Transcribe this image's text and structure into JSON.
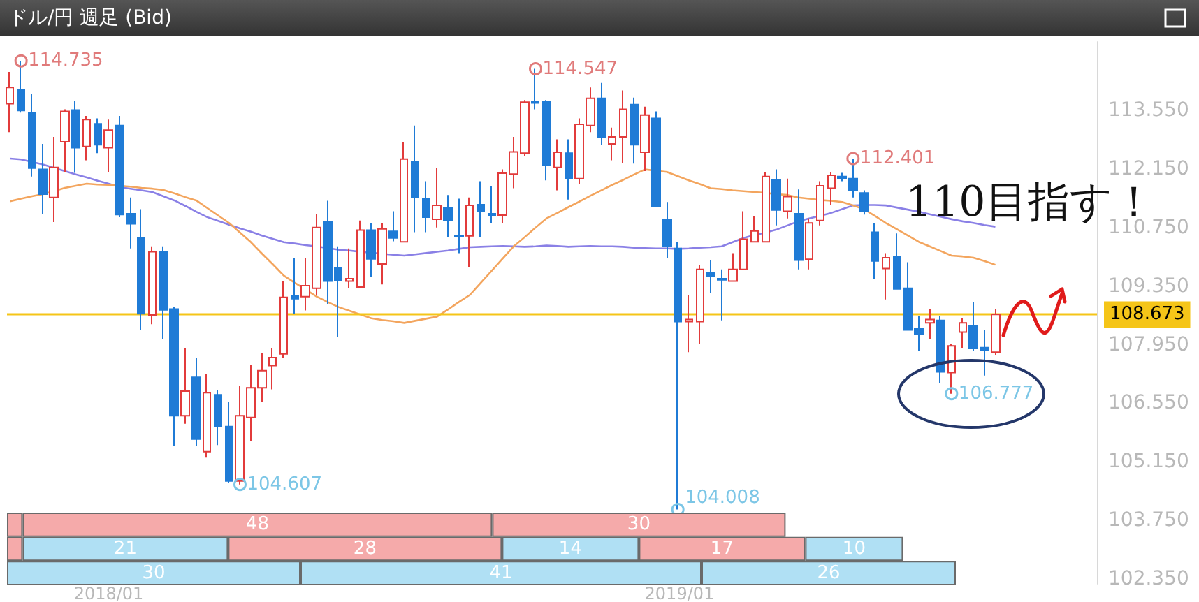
{
  "chart_data": [
    {
      "type": "candlestick",
      "title": "ドル/円 週足 (Bid)",
      "x": [
        "2017-10-30",
        "2017-11-06",
        "2017-11-13",
        "2017-11-20",
        "2017-11-27",
        "2017-12-04",
        "2017-12-11",
        "2017-12-18",
        "2017-12-25",
        "2018-01-01",
        "2018-01-08",
        "2018-01-15",
        "2018-01-22",
        "2018-01-29",
        "2018-02-05",
        "2018-02-12",
        "2018-02-19",
        "2018-02-26",
        "2018-03-05",
        "2018-03-12",
        "2018-03-19",
        "2018-03-26",
        "2018-04-02",
        "2018-04-09",
        "2018-04-16",
        "2018-04-23",
        "2018-04-30",
        "2018-05-07",
        "2018-05-14",
        "2018-05-21",
        "2018-05-28",
        "2018-06-04",
        "2018-06-11",
        "2018-06-18",
        "2018-06-25",
        "2018-07-02",
        "2018-07-09",
        "2018-07-16",
        "2018-07-23",
        "2018-07-30",
        "2018-08-06",
        "2018-08-13",
        "2018-08-20",
        "2018-08-27",
        "2018-09-03",
        "2018-09-10",
        "2018-09-17",
        "2018-09-24",
        "2018-10-01",
        "2018-10-08",
        "2018-10-15",
        "2018-10-22",
        "2018-10-29",
        "2018-11-05",
        "2018-11-12",
        "2018-11-19",
        "2018-11-26",
        "2018-12-03",
        "2018-12-10",
        "2018-12-17",
        "2018-12-24",
        "2018-12-31",
        "2019-01-07",
        "2019-01-14",
        "2019-01-21",
        "2019-01-28",
        "2019-02-04",
        "2019-02-11",
        "2019-02-18",
        "2019-02-25",
        "2019-03-04",
        "2019-03-11",
        "2019-03-18",
        "2019-03-25",
        "2019-04-01",
        "2019-04-08",
        "2019-04-15",
        "2019-04-22",
        "2019-04-29",
        "2019-05-06",
        "2019-05-13",
        "2019-05-20",
        "2019-05-27",
        "2019-06-03",
        "2019-06-10",
        "2019-06-17",
        "2019-06-24",
        "2019-07-01",
        "2019-07-08",
        "2019-07-15",
        "2019-07-22"
      ],
      "ohlc": [
        [
          113.71,
          114.47,
          113.03,
          114.1
        ],
        [
          114.05,
          114.735,
          113.5,
          113.55
        ],
        [
          113.5,
          113.95,
          111.97,
          112.17
        ],
        [
          112.14,
          112.75,
          111.08,
          111.55
        ],
        [
          111.47,
          112.92,
          110.88,
          112.19
        ],
        [
          112.8,
          113.58,
          112.08,
          113.53
        ],
        [
          113.56,
          113.77,
          112.06,
          112.66
        ],
        [
          112.69,
          113.42,
          112.36,
          113.33
        ],
        [
          113.23,
          113.36,
          112.53,
          112.73
        ],
        [
          112.66,
          113.33,
          112.08,
          113.08
        ],
        [
          113.19,
          113.42,
          111.0,
          111.06
        ],
        [
          111.08,
          111.47,
          110.25,
          110.84
        ],
        [
          110.5,
          111.19,
          108.3,
          108.69
        ],
        [
          108.66,
          110.3,
          108.44,
          110.17
        ],
        [
          110.17,
          110.3,
          108.08,
          108.78
        ],
        [
          108.8,
          108.86,
          105.53,
          106.25
        ],
        [
          106.25,
          107.86,
          106.06,
          106.84
        ],
        [
          107.17,
          107.64,
          105.53,
          105.69
        ],
        [
          105.39,
          107.25,
          105.25,
          106.8
        ],
        [
          106.75,
          106.86,
          105.55,
          105.99
        ],
        [
          105.99,
          106.58,
          104.64,
          104.69
        ],
        [
          104.69,
          106.97,
          104.607,
          106.25
        ],
        [
          106.21,
          107.47,
          105.64,
          106.92
        ],
        [
          106.92,
          107.75,
          106.58,
          107.33
        ],
        [
          107.45,
          107.86,
          106.88,
          107.64
        ],
        [
          107.73,
          109.47,
          107.64,
          109.08
        ],
        [
          109.11,
          110.03,
          108.69,
          109.05
        ],
        [
          109.1,
          110.03,
          108.77,
          109.36
        ],
        [
          109.3,
          111.08,
          109.14,
          110.75
        ],
        [
          110.88,
          111.39,
          108.92,
          109.47
        ],
        [
          109.78,
          110.3,
          108.14,
          109.49
        ],
        [
          109.47,
          110.25,
          109.3,
          109.53
        ],
        [
          109.33,
          110.92,
          109.3,
          110.69
        ],
        [
          110.69,
          110.86,
          109.58,
          110.0
        ],
        [
          109.88,
          110.86,
          109.39,
          110.72
        ],
        [
          110.66,
          111.14,
          110.42,
          110.5
        ],
        [
          110.41,
          112.8,
          110.41,
          112.39
        ],
        [
          112.33,
          113.19,
          110.64,
          111.47
        ],
        [
          111.44,
          111.86,
          110.64,
          111.0
        ],
        [
          110.95,
          112.17,
          110.75,
          111.28
        ],
        [
          111.23,
          111.53,
          110.53,
          110.92
        ],
        [
          110.56,
          111.44,
          110.14,
          110.53
        ],
        [
          110.55,
          111.47,
          109.8,
          111.28
        ],
        [
          111.3,
          111.86,
          110.53,
          111.14
        ],
        [
          111.08,
          111.75,
          110.86,
          111.05
        ],
        [
          111.05,
          112.14,
          110.86,
          112.05
        ],
        [
          112.03,
          112.92,
          111.69,
          112.56
        ],
        [
          112.53,
          113.8,
          112.45,
          113.75
        ],
        [
          113.77,
          114.547,
          113.58,
          113.73
        ],
        [
          113.77,
          113.8,
          111.88,
          112.25
        ],
        [
          112.19,
          112.86,
          111.64,
          112.55
        ],
        [
          112.53,
          112.86,
          111.42,
          111.92
        ],
        [
          111.92,
          113.36,
          111.8,
          113.22
        ],
        [
          113.19,
          114.1,
          113.03,
          113.84
        ],
        [
          113.84,
          114.21,
          112.73,
          112.92
        ],
        [
          112.75,
          113.14,
          112.36,
          112.92
        ],
        [
          112.92,
          114.03,
          112.3,
          113.58
        ],
        [
          113.69,
          113.86,
          112.28,
          112.73
        ],
        [
          112.55,
          113.64,
          112.1,
          113.44
        ],
        [
          113.36,
          113.53,
          111.25,
          111.25
        ],
        [
          110.95,
          111.36,
          110.03,
          110.3
        ],
        [
          110.25,
          110.41,
          104.008,
          108.5
        ],
        [
          108.5,
          109.14,
          107.77,
          108.55
        ],
        [
          108.5,
          109.86,
          107.97,
          109.75
        ],
        [
          109.66,
          109.97,
          109.19,
          109.58
        ],
        [
          109.53,
          109.75,
          108.53,
          109.5
        ],
        [
          109.47,
          110.14,
          109.47,
          109.75
        ],
        [
          109.75,
          111.14,
          109.75,
          110.47
        ],
        [
          110.41,
          111.03,
          110.41,
          110.67
        ],
        [
          110.41,
          112.08,
          110.41,
          111.97
        ],
        [
          111.89,
          112.14,
          110.8,
          111.17
        ],
        [
          111.14,
          111.92,
          110.97,
          111.49
        ],
        [
          111.08,
          111.66,
          109.75,
          109.97
        ],
        [
          109.99,
          110.97,
          109.75,
          110.86
        ],
        [
          110.92,
          111.86,
          110.8,
          111.75
        ],
        [
          111.69,
          112.08,
          111.3,
          112.0
        ],
        [
          111.97,
          112.06,
          111.86,
          111.92
        ],
        [
          111.92,
          112.401,
          111.47,
          111.64
        ],
        [
          111.58,
          111.64,
          111.06,
          111.14
        ],
        [
          110.64,
          110.86,
          109.53,
          109.95
        ],
        [
          109.77,
          110.14,
          109.03,
          110.03
        ],
        [
          110.06,
          110.61,
          109.28,
          109.28
        ],
        [
          109.3,
          109.92,
          108.3,
          108.3
        ],
        [
          108.33,
          108.64,
          107.8,
          108.21
        ],
        [
          108.47,
          108.8,
          108.08,
          108.55
        ],
        [
          108.53,
          108.64,
          107.03,
          107.3
        ],
        [
          107.28,
          107.97,
          106.777,
          107.92
        ],
        [
          108.25,
          108.58,
          107.86,
          108.47
        ],
        [
          108.41,
          108.97,
          107.8,
          107.86
        ],
        [
          107.88,
          108.3,
          107.21,
          107.81
        ],
        [
          107.77,
          108.8,
          107.69,
          108.673
        ]
      ],
      "series": [
        {
          "type": "line",
          "color": "#8a80e6",
          "values": [
            112.4,
            112.38,
            112.32,
            112.26,
            112.18,
            112.1,
            112.02,
            111.95,
            111.87,
            111.8,
            111.72,
            111.68,
            111.64,
            111.6,
            111.5,
            111.4,
            111.27,
            111.13,
            111.0,
            110.91,
            110.82,
            110.73,
            110.65,
            110.56,
            110.48,
            110.4,
            110.37,
            110.33,
            110.3,
            110.26,
            110.22,
            110.2,
            110.17,
            110.15,
            110.12,
            110.1,
            110.08,
            110.11,
            110.14,
            110.17,
            110.2,
            110.24,
            110.28,
            110.29,
            110.3,
            110.31,
            110.3,
            110.29,
            110.3,
            110.32,
            110.31,
            110.29,
            110.3,
            110.31,
            110.3,
            110.3,
            110.29,
            110.27,
            110.26,
            110.25,
            110.25,
            110.24,
            110.25,
            110.27,
            110.28,
            110.3,
            110.4,
            110.5,
            110.57,
            110.63,
            110.7,
            110.8,
            110.9,
            110.97,
            111.03,
            111.1,
            111.19,
            111.28,
            111.29,
            111.29,
            111.28,
            111.23,
            111.18,
            111.13,
            111.07,
            111.01,
            110.95,
            110.9,
            110.86,
            110.81,
            110.77
          ]
        },
        {
          "type": "line",
          "color": "#f3a55e",
          "values": [
            111.38,
            111.44,
            111.5,
            111.55,
            111.62,
            111.7,
            111.75,
            111.8,
            111.78,
            111.77,
            111.75,
            111.73,
            111.7,
            111.68,
            111.65,
            111.57,
            111.48,
            111.4,
            111.22,
            111.04,
            110.86,
            110.63,
            110.4,
            110.13,
            109.87,
            109.6,
            109.43,
            109.27,
            109.1,
            108.97,
            108.85,
            108.76,
            108.67,
            108.58,
            108.54,
            108.51,
            108.47,
            108.52,
            108.57,
            108.62,
            108.79,
            108.97,
            109.14,
            109.43,
            109.72,
            110.01,
            110.3,
            110.52,
            110.75,
            110.97,
            111.1,
            111.24,
            111.37,
            111.51,
            111.64,
            111.77,
            111.89,
            112.02,
            112.14,
            112.11,
            112.08,
            111.98,
            111.88,
            111.79,
            111.69,
            111.67,
            111.64,
            111.62,
            111.6,
            111.58,
            111.55,
            111.53,
            111.47,
            111.44,
            111.41,
            111.39,
            111.36,
            111.28,
            111.19,
            111.03,
            110.86,
            110.71,
            110.56,
            110.41,
            110.3,
            110.19,
            110.08,
            110.06,
            110.03,
            109.95,
            109.86
          ]
        }
      ],
      "xlim": [
        "2017-10-28",
        "2019-09-25"
      ],
      "xticks": [
        {
          "value": "2018-01-01",
          "label": "2018/01"
        },
        {
          "value": "2019-01-01",
          "label": "2019/01"
        }
      ],
      "ylim": [
        102.23,
        115.19
      ],
      "yticks": [
        {
          "value": 102.35,
          "label": "102.350"
        },
        {
          "value": 103.75,
          "label": "103.750"
        },
        {
          "value": 105.15,
          "label": "105.150"
        },
        {
          "value": 106.55,
          "label": "106.550"
        },
        {
          "value": 107.95,
          "label": "107.950"
        },
        {
          "value": 109.35,
          "label": "109.350"
        },
        {
          "value": 110.75,
          "label": "110.750"
        },
        {
          "value": 112.15,
          "label": "112.150"
        },
        {
          "value": 113.55,
          "label": "113.550"
        }
      ],
      "ref_lines": [
        {
          "axis": "y",
          "value": 108.673,
          "label": "108.673",
          "color": "#f5c518"
        }
      ],
      "annotations": [
        "110目指す！",
        {
          "text": "114.735",
          "x": "2017-11-06",
          "y": 114.735
        },
        {
          "text": "104.607",
          "x": "2018-03-26",
          "y": 104.607
        },
        {
          "text": "114.547",
          "x": "2018-10-01",
          "y": 114.547
        },
        {
          "text": "104.008",
          "x": "2018-12-31",
          "y": 104.008
        },
        {
          "text": "112.401",
          "x": "2019-04-22",
          "y": 112.401
        },
        {
          "text": "106.777",
          "x": "2019-06-24",
          "y": 106.777
        }
      ]
    },
    {
      "type": "bar",
      "orientation": "horizontal",
      "stacked": true,
      "categories": [
        null,
        null,
        null
      ],
      "tick_labels": false,
      "series": [
        {
          "values": [
            1.6,
            1.6,
            30
          ],
          "colors": [
            "#f5aaaa",
            "#f5aaaa",
            "#b0e0f4"
          ],
          "value_labels": [
            null,
            null,
            "30"
          ]
        },
        {
          "values": [
            48,
            21,
            41
          ],
          "colors": [
            "#f5aaaa",
            "#b0e0f4",
            "#b0e0f4"
          ],
          "value_labels": [
            "48",
            "21",
            "41"
          ]
        },
        {
          "values": [
            30,
            28,
            26
          ],
          "colors": [
            "#f5aaaa",
            "#f5aaaa",
            "#b0e0f4"
          ],
          "value_labels": [
            "30",
            "28",
            "26"
          ]
        },
        {
          "values": [
            null,
            14,
            null
          ],
          "colors": [
            null,
            "#b0e0f4",
            null
          ],
          "value_labels": [
            null,
            "14",
            null
          ]
        },
        {
          "values": [
            null,
            17,
            null
          ],
          "colors": [
            null,
            "#f5aaaa",
            null
          ],
          "value_labels": [
            null,
            "17",
            null
          ]
        },
        {
          "values": [
            null,
            10,
            null
          ],
          "colors": [
            null,
            "#b0e0f4",
            null
          ],
          "value_labels": [
            null,
            "10",
            null
          ]
        }
      ]
    }
  ]
}
